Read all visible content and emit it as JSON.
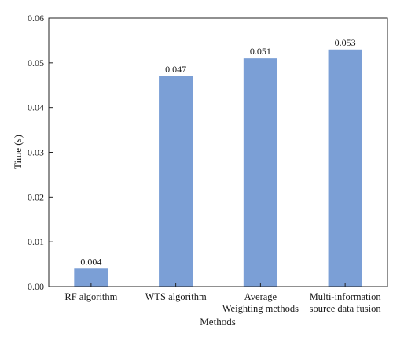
{
  "chart_data": {
    "type": "bar",
    "categories": [
      [
        "RF algorithm"
      ],
      [
        "WTS algorithm"
      ],
      [
        "Average",
        "Weighting methods"
      ],
      [
        "Multi-information",
        "source data fusion"
      ]
    ],
    "values": [
      0.004,
      0.047,
      0.051,
      0.053
    ],
    "data_labels": [
      "0.004",
      "0.047",
      "0.051",
      "0.053"
    ],
    "ylim": [
      0,
      0.06
    ],
    "yticks": [
      "0.00",
      "0.01",
      "0.02",
      "0.03",
      "0.04",
      "0.05",
      "0.06"
    ],
    "xlabel": "Methods",
    "ylabel": "Time (s)",
    "bar_color": "#7b9fd6",
    "grid": false,
    "legend": "none"
  }
}
